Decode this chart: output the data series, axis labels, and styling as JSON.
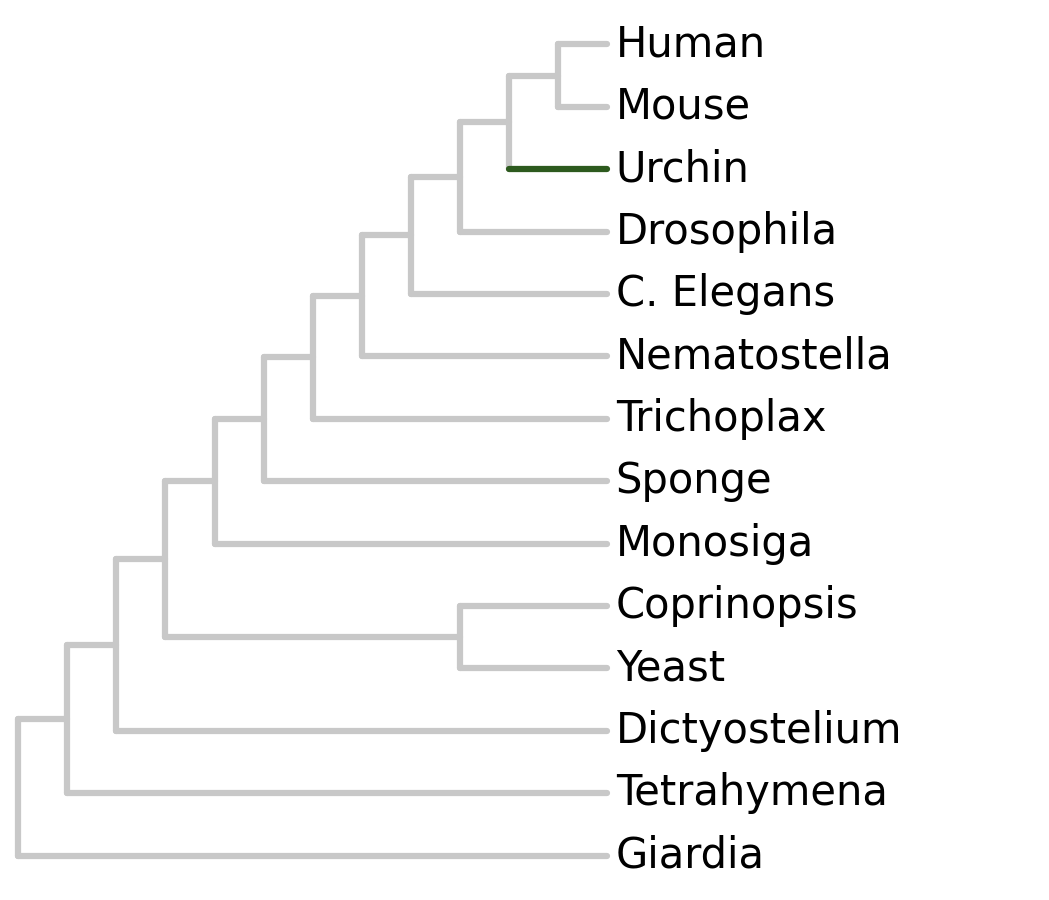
{
  "taxa": [
    "Human",
    "Mouse",
    "Urchin",
    "Drosophila",
    "C. Elegans",
    "Nematostella",
    "Trichoplax",
    "Sponge",
    "Monosiga",
    "Coprinopsis",
    "Yeast",
    "Dictyostelium",
    "Tetrahymena",
    "Giardia"
  ],
  "taxa_y": [
    13,
    12,
    11,
    10,
    9,
    8,
    7,
    6,
    5,
    4,
    3,
    2,
    1,
    0
  ],
  "tree_color": "#c8c8c8",
  "highlight_taxon": "Urchin",
  "highlight_color": "#2d5a1e",
  "background_color": "#ffffff",
  "label_fontsize": 30,
  "label_color": "#000000",
  "linewidth": 4.5,
  "X_TIP": 10.0,
  "xlim": [
    -0.3,
    17.5
  ],
  "ylim": [
    -0.7,
    13.7
  ],
  "figsize": [
    10.49,
    9.0
  ]
}
